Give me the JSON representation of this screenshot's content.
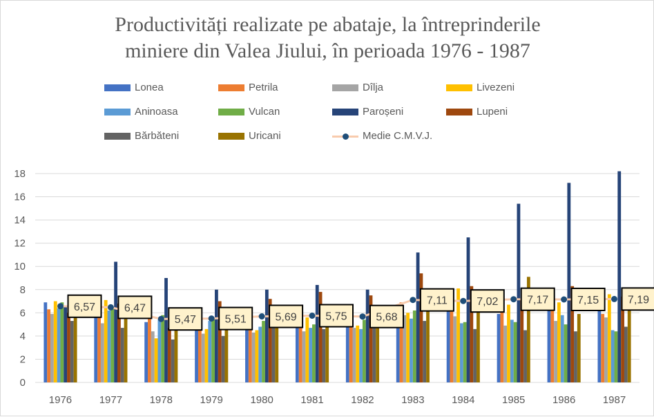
{
  "chart_data": {
    "type": "bar",
    "title_lines": [
      "Productivități  realizate pe abataje, la întreprinderile",
      "miniere din Valea Jiului, în perioada 1976 - 1987"
    ],
    "categories": [
      "1976",
      "1977",
      "1978",
      "1979",
      "1980",
      "1981",
      "1982",
      "1983",
      "1984",
      "1985",
      "1986",
      "1987"
    ],
    "ylim": [
      0,
      18
    ],
    "yticks": [
      "0",
      "2",
      "4",
      "6",
      "8",
      "10",
      "12",
      "14",
      "16",
      "18"
    ],
    "series": [
      {
        "name": "Lonea",
        "color": "#4472c4",
        "values": [
          6.9,
          6.0,
          5.2,
          4.7,
          4.8,
          4.8,
          4.8,
          6.7,
          6.3,
          5.9,
          6.2,
          6.3
        ]
      },
      {
        "name": "Petrila",
        "color": "#ed7d31",
        "values": [
          6.3,
          6.0,
          5.7,
          4.5,
          4.6,
          5.8,
          4.9,
          6.9,
          6.1,
          6.3,
          6.4,
          5.9
        ]
      },
      {
        "name": "Dîlja",
        "color": "#a5a5a5",
        "values": [
          5.9,
          5.1,
          4.4,
          4.2,
          4.3,
          4.4,
          4.7,
          5.8,
          5.7,
          4.9,
          5.3,
          5.6
        ]
      },
      {
        "name": "Livezeni",
        "color": "#ffc000",
        "values": [
          7.0,
          7.1,
          3.8,
          4.6,
          4.5,
          5.6,
          4.9,
          6.0,
          8.1,
          6.7,
          6.9,
          7.6
        ]
      },
      {
        "name": "Aninoasa",
        "color": "#5b9bd5",
        "values": [
          6.4,
          6.2,
          5.5,
          5.3,
          4.8,
          4.7,
          4.6,
          5.5,
          5.1,
          5.4,
          5.8,
          4.5
        ]
      },
      {
        "name": "Vulcan",
        "color": "#70ad47",
        "values": [
          6.9,
          6.5,
          5.8,
          5.5,
          5.3,
          5.0,
          5.4,
          6.2,
          5.2,
          5.2,
          5.0,
          4.4
        ]
      },
      {
        "name": "Paroșeni",
        "color": "#264478",
        "values": [
          6.6,
          10.4,
          9.0,
          8.0,
          8.0,
          8.4,
          8.0,
          11.2,
          12.5,
          15.4,
          17.2,
          18.2
        ]
      },
      {
        "name": "Lupeni",
        "color": "#9e480e",
        "values": [
          6.0,
          6.8,
          4.7,
          7.0,
          7.2,
          7.8,
          7.5,
          9.4,
          8.3,
          7.1,
          8.3,
          7.4
        ]
      },
      {
        "name": "Bărbăteni",
        "color": "#636363",
        "values": [
          5.3,
          4.7,
          3.7,
          4.0,
          5.1,
          4.6,
          5.0,
          5.3,
          4.6,
          4.5,
          4.4,
          4.8
        ]
      },
      {
        "name": "Uricani",
        "color": "#997300",
        "values": [
          6.8,
          6.3,
          5.6,
          5.1,
          5.6,
          5.4,
          5.6,
          7.0,
          7.0,
          9.1,
          5.9,
          7.6
        ]
      }
    ],
    "average_series": {
      "name": "Medie C.M.V.J.",
      "line_color": "#f8cbad",
      "marker_color": "#1f4e79",
      "values": [
        6.57,
        6.47,
        5.47,
        5.51,
        5.69,
        5.75,
        5.68,
        7.11,
        7.02,
        7.17,
        7.15,
        7.19
      ],
      "labels": [
        "6,57",
        "6,47",
        "5,47",
        "5,51",
        "5,69",
        "5,75",
        "5,68",
        "7,11",
        "7,02",
        "7,17",
        "7,15",
        "7,19"
      ],
      "label_box_color": "#fff2cc"
    },
    "legend_position": "top",
    "grid": true
  }
}
